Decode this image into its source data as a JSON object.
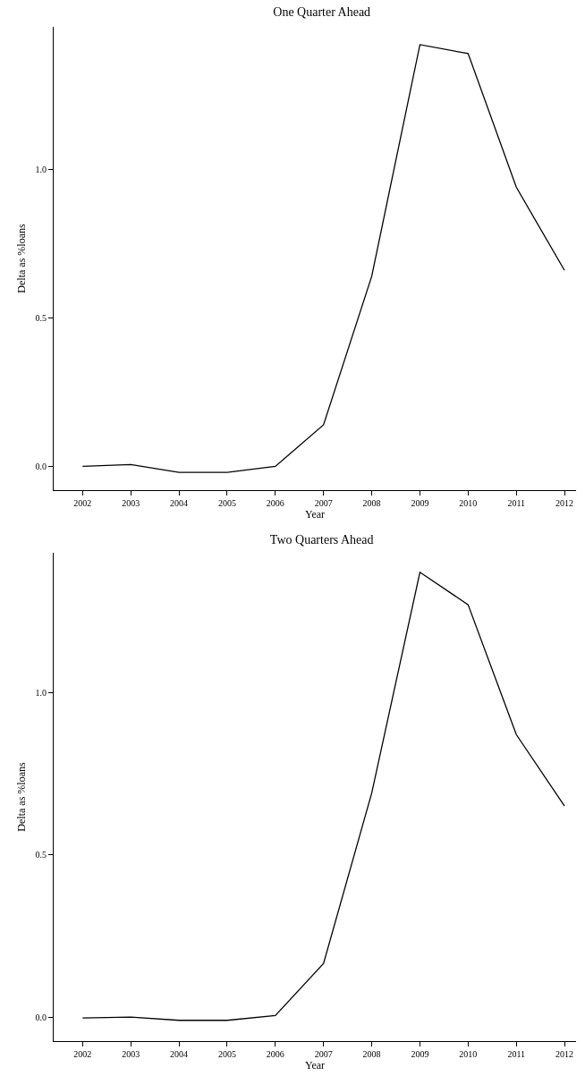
{
  "chart_data": [
    {
      "type": "line",
      "title": "One Quarter Ahead",
      "xlabel": "Year",
      "ylabel": "Delta as %loans",
      "x": [
        2002,
        2003,
        2004,
        2005,
        2006,
        2007,
        2008,
        2009,
        2010,
        2011,
        2012
      ],
      "values": [
        0.0,
        0.006,
        -0.02,
        -0.02,
        0.0,
        0.14,
        0.64,
        1.42,
        1.39,
        0.94,
        0.66
      ],
      "color": "#000000",
      "xlim": [
        2001.4,
        2012.24
      ],
      "xticks": [
        2002,
        2003,
        2004,
        2005,
        2006,
        2007,
        2008,
        2009,
        2010,
        2011,
        2012
      ],
      "ylim": [
        -0.08,
        1.48
      ],
      "yticks": [
        {
          "value": 0,
          "label": "0.0"
        },
        {
          "value": 0.5,
          "label": "0.5"
        },
        {
          "value": 1,
          "label": "1.0"
        }
      ]
    },
    {
      "type": "line",
      "title": "Two Quarters Ahead",
      "xlabel": "Year",
      "ylabel": "Delta as %loans",
      "x": [
        2002,
        2003,
        2004,
        2005,
        2006,
        2007,
        2008,
        2009,
        2010,
        2011,
        2012
      ],
      "values": [
        -0.003,
        0.0,
        -0.01,
        -0.01,
        0.005,
        0.165,
        0.69,
        1.37,
        1.27,
        0.87,
        0.65
      ],
      "color": "#000000",
      "xlim": [
        2001.4,
        2012.24
      ],
      "xticks": [
        2002,
        2003,
        2004,
        2005,
        2006,
        2007,
        2008,
        2009,
        2010,
        2011,
        2012
      ],
      "ylim": [
        -0.074,
        1.43
      ],
      "yticks": [
        {
          "value": 0,
          "label": "0.0"
        },
        {
          "value": 0.5,
          "label": "0.5"
        },
        {
          "value": 1,
          "label": "1.0"
        }
      ]
    }
  ]
}
